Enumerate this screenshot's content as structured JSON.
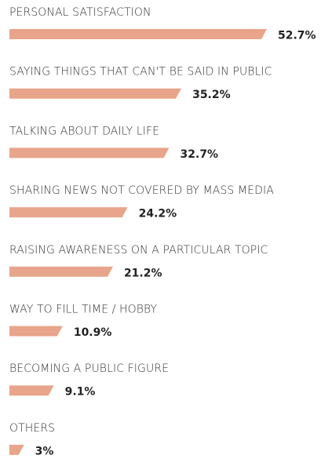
{
  "chart_data": {
    "type": "bar",
    "orientation": "horizontal",
    "color": "#e8a58b",
    "categories": [
      "PERSONAL SATISFACTION",
      "SAYING THINGS THAT CAN'T BE SAID IN PUBLIC",
      "TALKING ABOUT DAILY LIFE",
      "SHARING NEWS NOT COVERED BY MASS MEDIA",
      "RAISING AWARENESS ON A PARTICULAR TOPIC",
      "WAY TO FILL TIME / HOBBY",
      "BECOMING A PUBLIC FIGURE",
      "OTHERS"
    ],
    "values": [
      52.7,
      35.2,
      32.7,
      24.2,
      21.2,
      10.9,
      9.1,
      3
    ],
    "value_labels": [
      "52.7%",
      "35.2%",
      "32.7%",
      "24.2%",
      "21.2%",
      "10.9%",
      "9.1%",
      "3%"
    ]
  }
}
